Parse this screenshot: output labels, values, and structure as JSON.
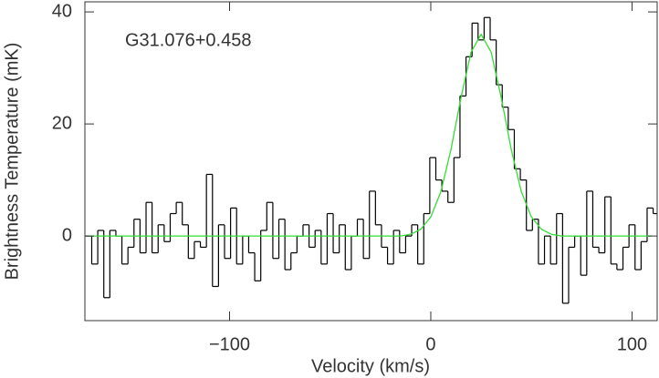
{
  "chart_data": {
    "type": "step",
    "annotation": "G31.076+0.458",
    "xlabel": "Velocity (km/s)",
    "ylabel": "Brightness Temperature (mK)",
    "xlim": [
      -171.9,
      112.5
    ],
    "ylim": [
      -15.1,
      41.8
    ],
    "xticks": [
      {
        "value": -100,
        "label": "−100"
      },
      0,
      100
    ],
    "yticks": [
      0,
      20,
      40
    ],
    "series": [
      {
        "type": "step",
        "color": "#000000",
        "x": [
          -170,
          -167,
          -164,
          -161,
          -158,
          -155,
          -152,
          -149,
          -146,
          -143,
          -140,
          -137,
          -134,
          -131,
          -128,
          -125,
          -122,
          -119,
          -116,
          -113,
          -110,
          -107,
          -104,
          -101,
          -98,
          -95,
          -92,
          -89,
          -86,
          -83,
          -80,
          -77,
          -74,
          -71,
          -68,
          -65,
          -62,
          -59,
          -56,
          -53,
          -50,
          -47,
          -44,
          -41,
          -38,
          -35,
          -32,
          -29,
          -26,
          -23,
          -20,
          -17,
          -14,
          -11,
          -8,
          -5,
          -2,
          1,
          4,
          7,
          10,
          13,
          16,
          19,
          22,
          25,
          28,
          31,
          34,
          37,
          40,
          43,
          46,
          49,
          52,
          55,
          58,
          61,
          64,
          67,
          70,
          73,
          76,
          79,
          82,
          85,
          88,
          91,
          94,
          97,
          100,
          103,
          106,
          109,
          112
        ],
        "values": [
          0,
          -5,
          1,
          -11,
          1,
          0,
          -5,
          -2,
          3,
          -3,
          6,
          -3,
          2,
          -1,
          4,
          6,
          2,
          -4,
          -1,
          -2,
          11,
          -9,
          2,
          -4,
          5,
          -5,
          0,
          -3,
          -8,
          1,
          6,
          -4,
          3,
          -6,
          -3,
          0,
          2,
          -2,
          1,
          -5,
          4,
          -3,
          2,
          -6,
          0,
          3,
          -4,
          8,
          2,
          -2,
          -5,
          1,
          -3,
          0,
          2,
          -5,
          4,
          14,
          10,
          8,
          6,
          14,
          25,
          32,
          38,
          35,
          39,
          35,
          27,
          23,
          19,
          12,
          10,
          1,
          3,
          -5,
          0,
          -5,
          4,
          -12,
          -2,
          0,
          -7,
          8,
          -2,
          -3,
          7,
          -5,
          -6,
          -2,
          2,
          -6,
          -1,
          5,
          4
        ]
      },
      {
        "type": "line",
        "color": "#33dd33",
        "x": [
          -170,
          -165,
          -160,
          -155,
          -150,
          -145,
          -140,
          -135,
          -130,
          -125,
          -120,
          -115,
          -110,
          -105,
          -100,
          -95,
          -90,
          -85,
          -80,
          -75,
          -70,
          -65,
          -60,
          -55,
          -50,
          -45,
          -40,
          -35,
          -30,
          -25,
          -20,
          -15,
          -10,
          -5,
          0,
          5,
          10,
          15,
          20,
          25,
          30,
          35,
          40,
          45,
          50,
          55,
          60,
          65,
          70,
          75,
          80,
          85,
          90,
          95,
          100,
          105,
          110
        ],
        "values": [
          0,
          0,
          0,
          0,
          0,
          0,
          0,
          0,
          0,
          0,
          0,
          0,
          0,
          0,
          0,
          0,
          0,
          0,
          0,
          0,
          0,
          0,
          0,
          0,
          0,
          0,
          0,
          0,
          0,
          0,
          0,
          0,
          0.3,
          1.2,
          3.4,
          7.9,
          15.4,
          24.7,
          32.8,
          36,
          32.8,
          24.7,
          15.4,
          7.9,
          3.4,
          1.2,
          0.3,
          0,
          0,
          0,
          0,
          0,
          0,
          0,
          0,
          0,
          0
        ]
      }
    ]
  }
}
